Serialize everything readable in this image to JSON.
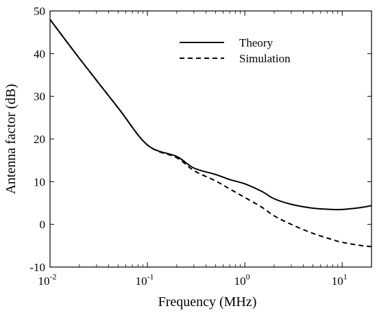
{
  "chart_data": {
    "type": "line",
    "title": "",
    "xlabel": "Frequency (MHz)",
    "ylabel": "Antenna factor (dB)",
    "xscale": "log",
    "xlim": [
      0.01,
      20
    ],
    "ylim": [
      -10,
      50
    ],
    "grid": false,
    "legend_position": "top-right",
    "x_ticks": [
      {
        "value": 0.01,
        "base": "10",
        "exp": "-2"
      },
      {
        "value": 0.1,
        "base": "10",
        "exp": "-1"
      },
      {
        "value": 1,
        "base": "10",
        "exp": "0"
      },
      {
        "value": 10,
        "base": "10",
        "exp": "1"
      }
    ],
    "y_ticks": [
      -10,
      0,
      10,
      20,
      30,
      40,
      50
    ],
    "series": [
      {
        "name": "Theory",
        "style": "solid",
        "color": "#000000",
        "x": [
          0.01,
          0.02,
          0.05,
          0.1,
          0.2,
          0.3,
          0.5,
          0.7,
          1,
          1.5,
          2,
          3,
          5,
          8,
          10,
          15,
          20
        ],
        "y": [
          48,
          38.9,
          27.3,
          18.6,
          15.9,
          13.2,
          11.7,
          10.5,
          9.5,
          7.7,
          6.0,
          4.7,
          3.8,
          3.5,
          3.5,
          3.9,
          4.4
        ]
      },
      {
        "name": "Simulation",
        "style": "dashed",
        "color": "#000000",
        "x": [
          0.01,
          0.02,
          0.05,
          0.1,
          0.2,
          0.3,
          0.5,
          0.7,
          1,
          1.5,
          2,
          3,
          5,
          8,
          10,
          15,
          20
        ],
        "y": [
          48,
          38.9,
          27.3,
          18.6,
          15.6,
          12.6,
          10.2,
          8.3,
          6.3,
          4.0,
          2.0,
          0.0,
          -2.1,
          -3.6,
          -4.2,
          -4.9,
          -5.2
        ]
      }
    ]
  }
}
